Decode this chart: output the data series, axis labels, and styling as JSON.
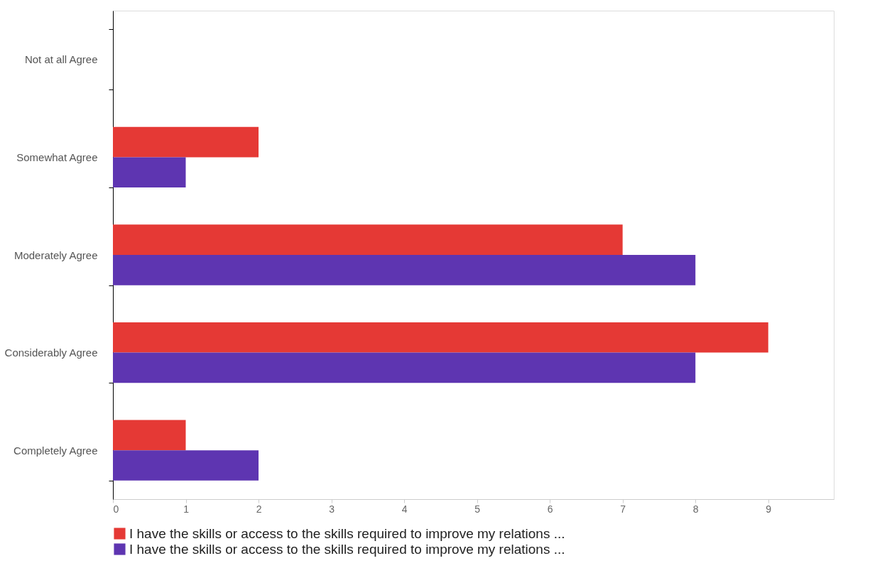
{
  "chart_data": {
    "type": "bar",
    "orientation": "horizontal",
    "categories": [
      "Not at all Agree",
      "Somewhat Agree",
      "Moderately Agree",
      "Considerably Agree",
      "Completely Agree"
    ],
    "series": [
      {
        "name": "I have the skills or access to the skills required to improve my relations ...",
        "color": "#e53935",
        "values": [
          0,
          2,
          7,
          9,
          1
        ]
      },
      {
        "name": "I have the skills or access to the skills required to improve my relations ...",
        "color": "#5e35b1",
        "values": [
          0,
          1,
          8,
          8,
          2
        ]
      }
    ],
    "xlim": [
      0,
      9.9
    ],
    "xticks": [
      0,
      1,
      2,
      3,
      4,
      5,
      6,
      7,
      8,
      9
    ],
    "grid": false,
    "legend": "bottom"
  }
}
